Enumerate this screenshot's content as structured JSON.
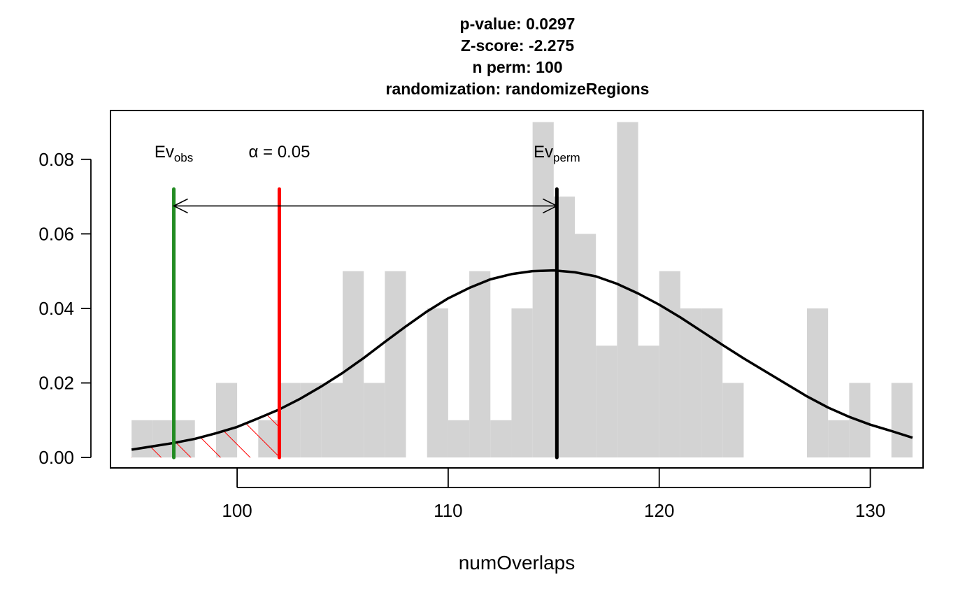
{
  "chart_data": {
    "type": "bar",
    "subtype": "histogram with fitted normal density",
    "title_lines": [
      "p-value:  0.0297",
      "Z-score:  -2.275",
      "n perm:  100",
      "randomization:  randomizeRegions"
    ],
    "xlabel": "numOverlaps",
    "ylabel": "",
    "xlim": [
      94,
      132.5
    ],
    "ylim": [
      -0.0028,
      0.0931
    ],
    "x_ticks": [
      100,
      110,
      120,
      130
    ],
    "y_ticks": [
      0,
      0.02,
      0.04,
      0.06,
      0.08
    ],
    "x_tick_labels": [
      "100",
      "110",
      "120",
      "130"
    ],
    "y_tick_labels": [
      "0.00",
      "0.02",
      "0.04",
      "0.06",
      "0.08"
    ],
    "grid": false,
    "histogram": {
      "bin_start": 95,
      "bin_width": 1,
      "densities": [
        0.01,
        0.01,
        0.01,
        0,
        0.02,
        0,
        0.01,
        0.02,
        0.02,
        0.02,
        0.05,
        0.02,
        0.05,
        0,
        0.04,
        0.01,
        0.05,
        0.01,
        0.04,
        0.09,
        0.07,
        0.06,
        0.03,
        0.09,
        0.03,
        0.05,
        0.04,
        0.04,
        0.02,
        0,
        0,
        0,
        0.04,
        0.01,
        0.02,
        0,
        0.02
      ],
      "color": "#d3d3d3"
    },
    "density_curve": {
      "x": [
        95,
        96,
        97,
        98,
        99,
        100,
        101,
        102,
        103,
        104,
        105,
        106,
        107,
        108,
        109,
        110,
        111,
        112,
        113,
        114,
        115,
        116,
        117,
        118,
        119,
        120,
        121,
        122,
        123,
        124,
        125,
        126,
        127,
        128,
        129,
        130,
        131,
        132
      ],
      "y": [
        0.0021,
        0.003,
        0.0039,
        0.005,
        0.0065,
        0.0082,
        0.0105,
        0.0129,
        0.0158,
        0.0191,
        0.0227,
        0.0267,
        0.031,
        0.0352,
        0.0392,
        0.0427,
        0.0455,
        0.0478,
        0.0492,
        0.05,
        0.0502,
        0.0497,
        0.0486,
        0.0466,
        0.044,
        0.041,
        0.0376,
        0.0339,
        0.0302,
        0.0266,
        0.0232,
        0.0198,
        0.0164,
        0.0134,
        0.0109,
        0.0088,
        0.0071,
        0.0053
      ],
      "color": "#000000"
    },
    "reference_lines": [
      {
        "name": "Ev_obs",
        "x": 97,
        "color": "#228b22"
      },
      {
        "name": "alpha",
        "x": 102,
        "color": "#ff0000"
      },
      {
        "name": "Ev_perm",
        "x": 115.15,
        "color": "#000000"
      }
    ],
    "line_top_y": 0.072,
    "arrow": {
      "x_from": 97,
      "x_to": 115.15,
      "y": 0.0675
    },
    "tail_region": {
      "x_from": 95,
      "x_to": 102,
      "color": "#ff0000",
      "pattern": "hatched"
    },
    "annotations": {
      "ev_obs": {
        "main": "Ev",
        "sub": "obs",
        "x": 97,
        "y": 0.0805
      },
      "alpha": {
        "text": "α = 0.05",
        "x": 102,
        "y": 0.0805
      },
      "ev_perm": {
        "main": "Ev",
        "sub": "perm",
        "x": 115.15,
        "y": 0.0805
      }
    }
  }
}
